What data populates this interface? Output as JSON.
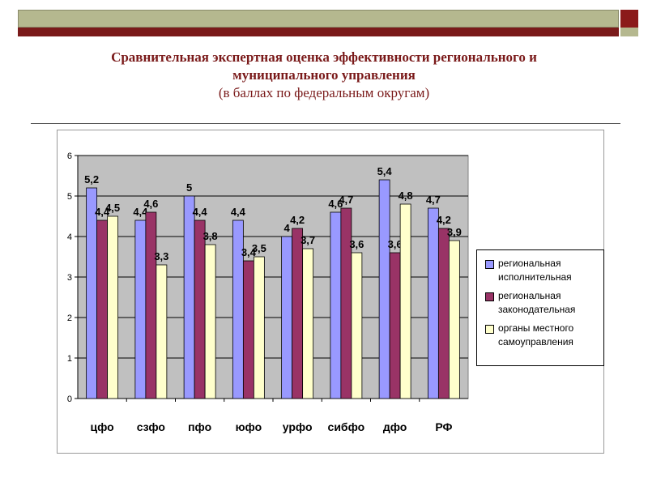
{
  "header": {
    "title_line1": "Сравнительная экспертная оценка эффективности регионального и",
    "title_line2": "муниципального управления",
    "subtitle": "(в баллах по федеральным округам)"
  },
  "colors": {
    "band_light": "#b5b88f",
    "band_dark": "#7a1a1a",
    "title": "#7a1a1a",
    "plot_bg": "#c0c0c0"
  },
  "chart_data": {
    "type": "bar",
    "title": "",
    "xlabel": "",
    "ylabel": "",
    "ylim": [
      0,
      6
    ],
    "yticks": [
      "0",
      "1",
      "2",
      "3",
      "4",
      "5",
      "6"
    ],
    "grid": true,
    "legend_position": "right",
    "categories": [
      "цфо",
      "сзфо",
      "пфо",
      "юфо",
      "урфо",
      "сибфо",
      "дфо",
      "РФ"
    ],
    "series": [
      {
        "name": "региональная исполнительная",
        "color": "#9999ff",
        "values": [
          5.2,
          4.4,
          5,
          4.4,
          4,
          4.6,
          5.4,
          4.7
        ],
        "labels": [
          "5,2",
          "4,4",
          "5",
          "4,4",
          "4",
          "4,6",
          "5,4",
          "4,7"
        ]
      },
      {
        "name": "региональная законодательная",
        "color": "#993366",
        "values": [
          4.4,
          4.6,
          4.4,
          3.4,
          4.2,
          4.7,
          3.6,
          4.2
        ],
        "labels": [
          "4,4",
          "4,6",
          "4,4",
          "3,4",
          "4,2",
          "4,7",
          "3,6",
          "4,2"
        ]
      },
      {
        "name": "органы местного самоуправления",
        "color": "#ffffcc",
        "values": [
          4.5,
          3.3,
          3.8,
          3.5,
          3.7,
          3.6,
          4.8,
          3.9
        ],
        "labels": [
          "4,5",
          "3,3",
          "3,8",
          "3,5",
          "3,7",
          "3,6",
          "4,8",
          "3,9"
        ]
      }
    ]
  },
  "legend": {
    "items": [
      {
        "line1": "региональная",
        "line2": "исполнительная"
      },
      {
        "line1": "региональная",
        "line2": "законодательная"
      },
      {
        "line1": "органы местного",
        "line2": "самоуправления"
      }
    ]
  }
}
